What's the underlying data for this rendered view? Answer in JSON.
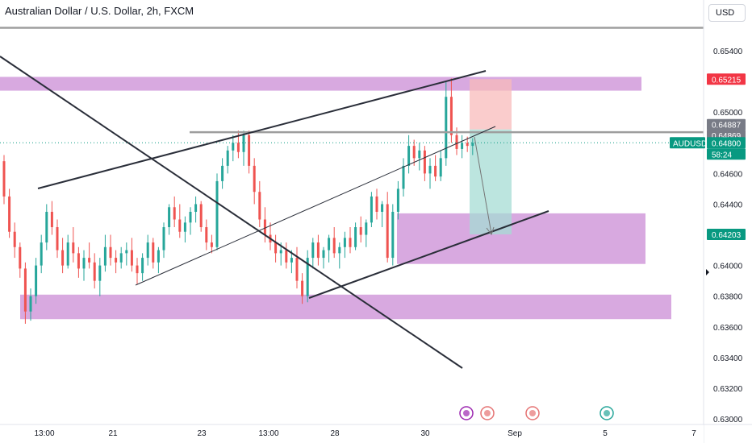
{
  "header": {
    "title": "Australian Dollar / U.S. Dollar, 2h, FXCM",
    "currency_button": "USD"
  },
  "colors": {
    "up": "#26a69a",
    "down": "#ef5350",
    "zone": "#ce93d8",
    "line": "#2a2e39",
    "gray_line": "#9e9e9e",
    "price_tag": "#089981",
    "stop_tag": "#f23645"
  },
  "chart_data": {
    "type": "candlestick",
    "symbol": "AUDUSD",
    "ylim": [
      0.63,
      0.656
    ],
    "y_ticks": [
      "0.65400",
      "0.65200",
      "0.65000",
      "0.64800",
      "0.64600",
      "0.64400",
      "0.64200",
      "0.64000",
      "0.63800",
      "0.63600",
      "0.63400",
      "0.63200",
      "0.63000"
    ],
    "x_ticks": [
      "13:00",
      "21",
      "23",
      "13:00",
      "28",
      "30",
      "Sep",
      "5",
      "7"
    ],
    "price_labels": [
      {
        "text": "0.65215",
        "kind": "stop"
      },
      {
        "text": "0.64887",
        "kind": "neutral"
      },
      {
        "text": "0.64869",
        "kind": "neutral"
      },
      {
        "text": "0.64800",
        "kind": "current"
      },
      {
        "text": "AUDUSD",
        "kind": "symbol"
      },
      {
        "text": "58:24",
        "kind": "timer"
      },
      {
        "text": "0.64203",
        "kind": "target"
      }
    ],
    "candles": [
      [
        0.6468,
        0.6472,
        0.644,
        0.6445
      ],
      [
        0.6445,
        0.645,
        0.6418,
        0.6422
      ],
      [
        0.6422,
        0.6428,
        0.6405,
        0.6412
      ],
      [
        0.6412,
        0.6415,
        0.6392,
        0.6398
      ],
      [
        0.6398,
        0.6402,
        0.6362,
        0.637
      ],
      [
        0.637,
        0.6385,
        0.6364,
        0.638
      ],
      [
        0.638,
        0.6405,
        0.6375,
        0.64
      ],
      [
        0.64,
        0.642,
        0.6395,
        0.6415
      ],
      [
        0.6415,
        0.644,
        0.641,
        0.6435
      ],
      [
        0.6435,
        0.6442,
        0.642,
        0.6425
      ],
      [
        0.6425,
        0.643,
        0.6405,
        0.641
      ],
      [
        0.641,
        0.6418,
        0.6395,
        0.64
      ],
      [
        0.64,
        0.642,
        0.6398,
        0.6415
      ],
      [
        0.6415,
        0.6425,
        0.6402,
        0.6408
      ],
      [
        0.6408,
        0.6412,
        0.6392,
        0.6398
      ],
      [
        0.6398,
        0.641,
        0.639,
        0.6405
      ],
      [
        0.6405,
        0.6415,
        0.6398,
        0.6402
      ],
      [
        0.6402,
        0.6408,
        0.6385,
        0.639
      ],
      [
        0.639,
        0.6405,
        0.638,
        0.64
      ],
      [
        0.64,
        0.642,
        0.6396,
        0.6412
      ],
      [
        0.6412,
        0.642,
        0.64,
        0.6405
      ],
      [
        0.6405,
        0.641,
        0.6395,
        0.6402
      ],
      [
        0.6402,
        0.6412,
        0.6398,
        0.6408
      ],
      [
        0.6408,
        0.6415,
        0.64,
        0.641
      ],
      [
        0.641,
        0.6418,
        0.6396,
        0.64
      ],
      [
        0.64,
        0.6405,
        0.6388,
        0.6395
      ],
      [
        0.6395,
        0.6408,
        0.639,
        0.6405
      ],
      [
        0.6405,
        0.642,
        0.64,
        0.6415
      ],
      [
        0.6415,
        0.6418,
        0.6398,
        0.6402
      ],
      [
        0.6402,
        0.6412,
        0.6395,
        0.641
      ],
      [
        0.641,
        0.6428,
        0.6405,
        0.6425
      ],
      [
        0.6425,
        0.644,
        0.642,
        0.6438
      ],
      [
        0.6438,
        0.6445,
        0.6425,
        0.643
      ],
      [
        0.643,
        0.644,
        0.6418,
        0.6422
      ],
      [
        0.6422,
        0.6432,
        0.6415,
        0.6428
      ],
      [
        0.6428,
        0.6438,
        0.642,
        0.6435
      ],
      [
        0.6435,
        0.6445,
        0.6428,
        0.644
      ],
      [
        0.644,
        0.6442,
        0.6422,
        0.6425
      ],
      [
        0.6425,
        0.643,
        0.641,
        0.6415
      ],
      [
        0.6415,
        0.642,
        0.6408,
        0.6412
      ],
      [
        0.6412,
        0.646,
        0.641,
        0.6455
      ],
      [
        0.6455,
        0.647,
        0.645,
        0.6465
      ],
      [
        0.6465,
        0.6478,
        0.646,
        0.6475
      ],
      [
        0.6475,
        0.6485,
        0.6468,
        0.648
      ],
      [
        0.648,
        0.6488,
        0.647,
        0.6474
      ],
      [
        0.6474,
        0.6488,
        0.6465,
        0.6485
      ],
      [
        0.6485,
        0.6488,
        0.646,
        0.6465
      ],
      [
        0.6465,
        0.647,
        0.644,
        0.6448
      ],
      [
        0.6448,
        0.6455,
        0.6425,
        0.643
      ],
      [
        0.643,
        0.6438,
        0.6415,
        0.642
      ],
      [
        0.642,
        0.6428,
        0.641,
        0.6415
      ],
      [
        0.6415,
        0.642,
        0.6402,
        0.6408
      ],
      [
        0.6408,
        0.6415,
        0.64,
        0.641
      ],
      [
        0.641,
        0.6415,
        0.6398,
        0.6402
      ],
      [
        0.6402,
        0.641,
        0.6395,
        0.6405
      ],
      [
        0.6405,
        0.6412,
        0.6385,
        0.639
      ],
      [
        0.639,
        0.6395,
        0.6375,
        0.638
      ],
      [
        0.638,
        0.641,
        0.6376,
        0.6405
      ],
      [
        0.6405,
        0.6418,
        0.6398,
        0.6415
      ],
      [
        0.6415,
        0.642,
        0.64,
        0.6405
      ],
      [
        0.6405,
        0.6412,
        0.6398,
        0.641
      ],
      [
        0.641,
        0.642,
        0.6402,
        0.6418
      ],
      [
        0.6418,
        0.6425,
        0.6405,
        0.6408
      ],
      [
        0.6408,
        0.6415,
        0.6398,
        0.6412
      ],
      [
        0.6412,
        0.6422,
        0.6405,
        0.6418
      ],
      [
        0.6418,
        0.6425,
        0.6408,
        0.6412
      ],
      [
        0.6412,
        0.6428,
        0.641,
        0.6425
      ],
      [
        0.6425,
        0.6432,
        0.6415,
        0.642
      ],
      [
        0.642,
        0.643,
        0.6412,
        0.6428
      ],
      [
        0.6428,
        0.6448,
        0.6425,
        0.6445
      ],
      [
        0.6445,
        0.645,
        0.643,
        0.6435
      ],
      [
        0.6435,
        0.6442,
        0.6425,
        0.644
      ],
      [
        0.644,
        0.6448,
        0.6402,
        0.6405
      ],
      [
        0.6405,
        0.644,
        0.64,
        0.6435
      ],
      [
        0.6435,
        0.6455,
        0.643,
        0.645
      ],
      [
        0.645,
        0.647,
        0.6445,
        0.6465
      ],
      [
        0.6465,
        0.6485,
        0.646,
        0.6478
      ],
      [
        0.6478,
        0.6482,
        0.6465,
        0.647
      ],
      [
        0.647,
        0.648,
        0.6462,
        0.6475
      ],
      [
        0.6475,
        0.6478,
        0.6455,
        0.646
      ],
      [
        0.646,
        0.647,
        0.645,
        0.6465
      ],
      [
        0.6465,
        0.6472,
        0.6455,
        0.6458
      ],
      [
        0.6458,
        0.6475,
        0.6455,
        0.647
      ],
      [
        0.647,
        0.652,
        0.6465,
        0.651
      ],
      [
        0.651,
        0.6522,
        0.648,
        0.6485
      ],
      [
        0.6485,
        0.649,
        0.6472,
        0.6476
      ],
      [
        0.6476,
        0.6485,
        0.647,
        0.648
      ],
      [
        0.648,
        0.6484,
        0.6474,
        0.6478
      ],
      [
        0.6478,
        0.6483,
        0.6472,
        0.648
      ]
    ],
    "zones": [
      {
        "name": "supply-zone-top",
        "y1": 0.6523,
        "y2": 0.6514
      },
      {
        "name": "demand-zone-right",
        "y1": 0.6434,
        "y2": 0.6401
      },
      {
        "name": "demand-zone-bottom",
        "y1": 0.6381,
        "y2": 0.6365
      }
    ],
    "position": {
      "entry": 0.64887,
      "stop": 0.65215,
      "target": 0.64203
    },
    "horizontal_levels": [
      0.64869,
      0.6555
    ]
  }
}
